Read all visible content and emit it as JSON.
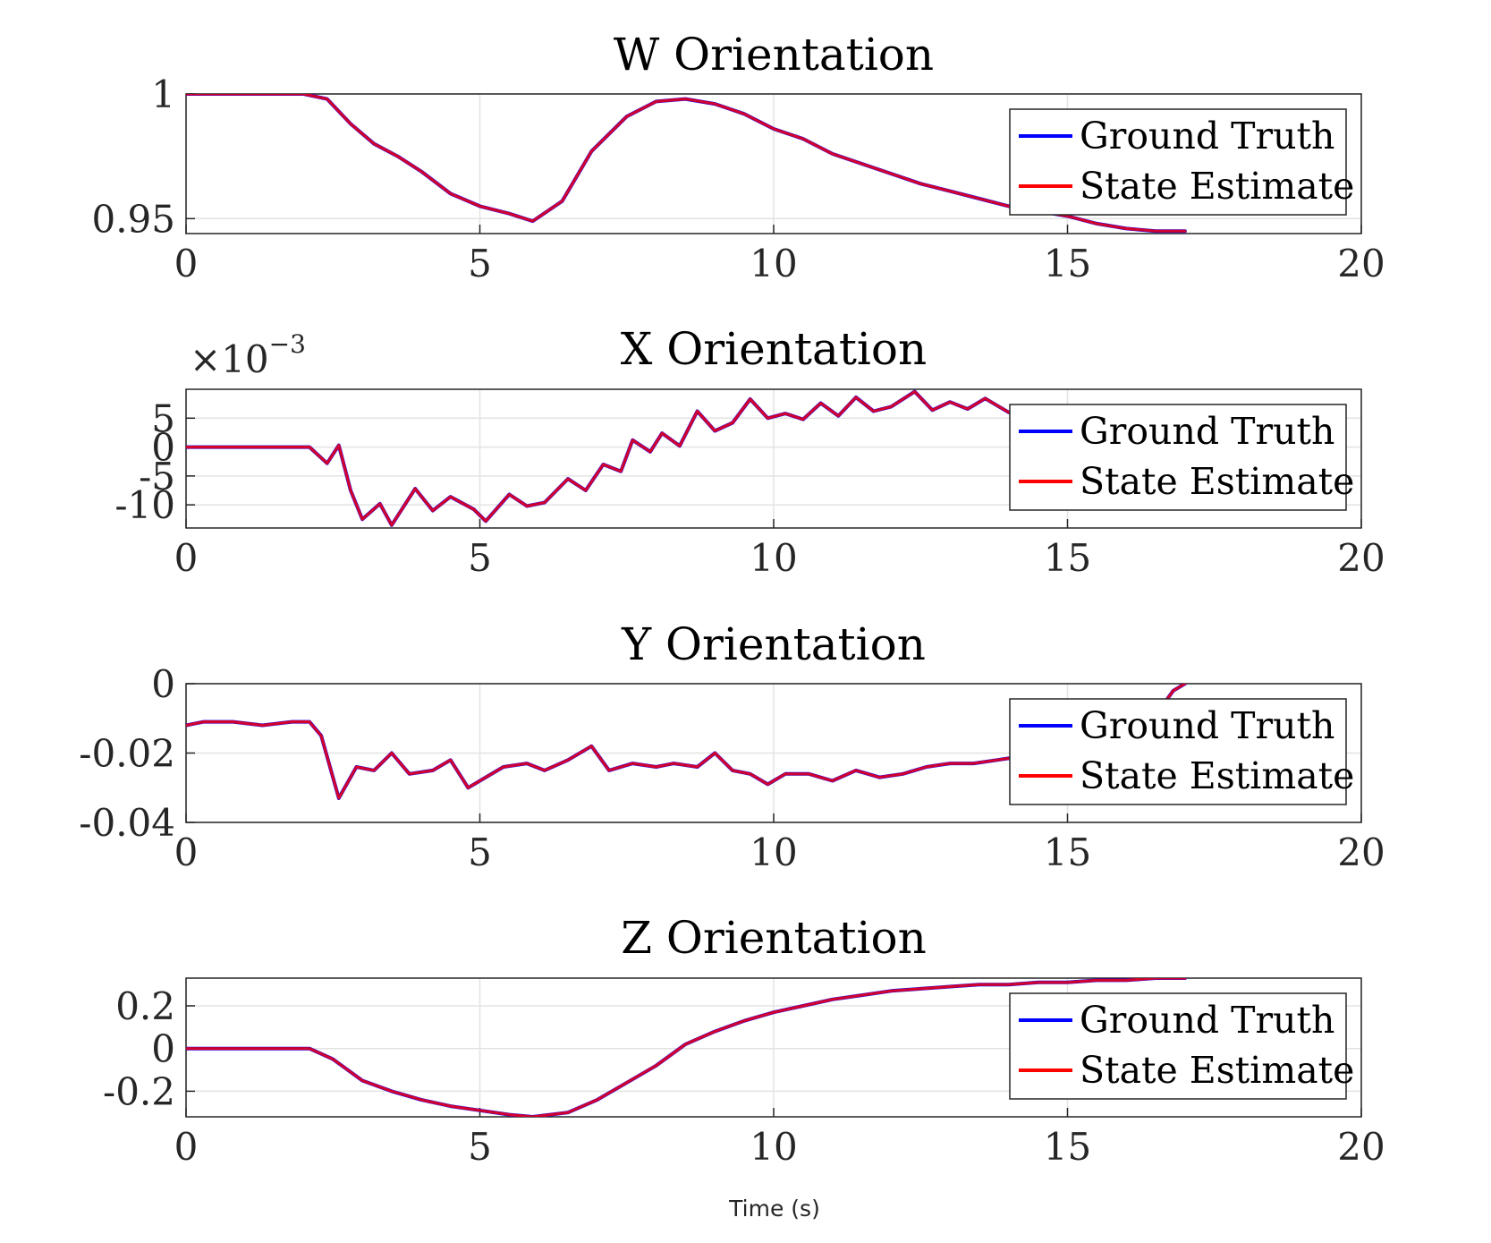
{
  "figure": {
    "xlabel": "Time (s)",
    "legend_labels": [
      "Ground Truth",
      "State Estimate"
    ],
    "colors": {
      "ground_truth": "#0000ff",
      "state_estimate": "#ff0000"
    }
  },
  "chart_data": [
    {
      "type": "line",
      "title": "W Orientation",
      "xlabel": "",
      "ylabel": "",
      "xlim": [
        0,
        20
      ],
      "ylim": [
        0.944,
        1.0
      ],
      "xticks": [
        "0",
        "5",
        "10",
        "15",
        "20"
      ],
      "yticks": [
        {
          "value": 1.0,
          "label": "1"
        },
        {
          "value": 0.95,
          "label": "0.95"
        }
      ],
      "exponent_label": "",
      "grid": true,
      "legend": "upper-right",
      "x": [
        0,
        0.5,
        1.0,
        1.5,
        2.0,
        2.4,
        2.8,
        3.2,
        3.6,
        4.0,
        4.5,
        5.0,
        5.5,
        5.9,
        6.4,
        6.9,
        7.5,
        8.0,
        8.5,
        9.0,
        9.5,
        10.0,
        10.5,
        11.0,
        11.5,
        12.0,
        12.5,
        13.0,
        13.5,
        14.0,
        14.5,
        15.0,
        15.5,
        16.0,
        16.5,
        17.0
      ],
      "series": [
        {
          "name": "Ground Truth",
          "values": [
            1.0,
            1.0,
            1.0,
            1.0,
            1.0,
            0.998,
            0.988,
            0.98,
            0.975,
            0.969,
            0.96,
            0.955,
            0.952,
            0.949,
            0.957,
            0.977,
            0.991,
            0.997,
            0.998,
            0.996,
            0.992,
            0.986,
            0.982,
            0.976,
            0.972,
            0.968,
            0.964,
            0.961,
            0.958,
            0.955,
            0.953,
            0.951,
            0.948,
            0.946,
            0.945,
            0.945
          ]
        },
        {
          "name": "State Estimate",
          "values": [
            1.0,
            1.0,
            1.0,
            1.0,
            1.0,
            0.998,
            0.988,
            0.98,
            0.975,
            0.969,
            0.96,
            0.955,
            0.952,
            0.949,
            0.957,
            0.977,
            0.991,
            0.997,
            0.998,
            0.996,
            0.992,
            0.986,
            0.982,
            0.976,
            0.972,
            0.968,
            0.964,
            0.961,
            0.958,
            0.955,
            0.953,
            0.951,
            0.948,
            0.946,
            0.945,
            0.945
          ]
        }
      ]
    },
    {
      "type": "line",
      "title": "X Orientation",
      "xlabel": "",
      "ylabel": "",
      "xlim": [
        0,
        20
      ],
      "ylim": [
        -14,
        10
      ],
      "xticks": [
        "0",
        "5",
        "10",
        "15",
        "20"
      ],
      "yticks": [
        {
          "value": 5,
          "label": "5"
        },
        {
          "value": 0,
          "label": "0"
        },
        {
          "value": -5,
          "label": "-5"
        },
        {
          "value": -10,
          "label": "-10"
        }
      ],
      "exponent_label": "×10",
      "exponent_power": "−3",
      "grid": true,
      "legend": "upper-right",
      "x": [
        0,
        1.0,
        2.1,
        2.4,
        2.6,
        2.8,
        3.0,
        3.3,
        3.5,
        3.9,
        4.2,
        4.5,
        4.9,
        5.1,
        5.5,
        5.8,
        6.1,
        6.5,
        6.8,
        7.1,
        7.4,
        7.6,
        7.9,
        8.1,
        8.4,
        8.7,
        9.0,
        9.3,
        9.6,
        9.9,
        10.2,
        10.5,
        10.8,
        11.1,
        11.4,
        11.7,
        12.0,
        12.4,
        12.7,
        13.0,
        13.3,
        13.6,
        14.0,
        14.5,
        15.0,
        15.5,
        16.0,
        16.5,
        17.0
      ],
      "series": [
        {
          "name": "Ground Truth",
          "values": [
            0,
            0,
            0,
            -2.8,
            0.3,
            -7.5,
            -12.5,
            -9.8,
            -13.5,
            -7.2,
            -11.0,
            -8.6,
            -10.8,
            -12.8,
            -8.2,
            -10.2,
            -9.6,
            -5.5,
            -7.5,
            -3.0,
            -4.2,
            1.2,
            -0.8,
            2.4,
            0.2,
            6.2,
            2.8,
            4.2,
            8.3,
            5.0,
            5.8,
            4.8,
            7.6,
            5.4,
            8.6,
            6.2,
            7.0,
            9.6,
            6.4,
            7.8,
            6.6,
            8.4,
            6.0,
            7.0,
            6.0,
            6.8,
            5.6,
            6.6,
            6.0
          ]
        },
        {
          "name": "State Estimate",
          "values": [
            0,
            0,
            0,
            -2.8,
            0.3,
            -7.5,
            -12.5,
            -9.8,
            -13.5,
            -7.2,
            -11.0,
            -8.6,
            -10.8,
            -12.8,
            -8.2,
            -10.2,
            -9.6,
            -5.5,
            -7.5,
            -3.0,
            -4.2,
            1.2,
            -0.8,
            2.4,
            0.2,
            6.2,
            2.8,
            4.2,
            8.3,
            5.0,
            5.8,
            4.8,
            7.6,
            5.4,
            8.6,
            6.2,
            7.0,
            9.6,
            6.4,
            7.8,
            6.6,
            8.4,
            6.0,
            7.0,
            6.0,
            6.8,
            5.6,
            6.6,
            6.0
          ]
        }
      ]
    },
    {
      "type": "line",
      "title": "Y Orientation",
      "xlabel": "",
      "ylabel": "",
      "xlim": [
        0,
        20
      ],
      "ylim": [
        -0.04,
        0.0
      ],
      "xticks": [
        "0",
        "5",
        "10",
        "15",
        "20"
      ],
      "yticks": [
        {
          "value": 0.0,
          "label": "0"
        },
        {
          "value": -0.02,
          "label": "-0.02"
        },
        {
          "value": -0.04,
          "label": "-0.04"
        }
      ],
      "exponent_label": "",
      "grid": true,
      "legend": "upper-right",
      "x": [
        0,
        0.3,
        0.8,
        1.3,
        1.8,
        2.1,
        2.3,
        2.6,
        2.9,
        3.2,
        3.5,
        3.8,
        4.2,
        4.5,
        4.8,
        5.1,
        5.4,
        5.8,
        6.1,
        6.5,
        6.9,
        7.2,
        7.6,
        8.0,
        8.3,
        8.7,
        9.0,
        9.3,
        9.6,
        9.9,
        10.2,
        10.6,
        11.0,
        11.4,
        11.8,
        12.2,
        12.6,
        13.0,
        13.4,
        13.8,
        14.2,
        14.6,
        15.0,
        15.4,
        15.8,
        16.2,
        16.5,
        16.8,
        17.0
      ],
      "series": [
        {
          "name": "Ground Truth",
          "values": [
            -0.012,
            -0.011,
            -0.011,
            -0.012,
            -0.011,
            -0.011,
            -0.015,
            -0.033,
            -0.024,
            -0.025,
            -0.02,
            -0.026,
            -0.025,
            -0.022,
            -0.03,
            -0.027,
            -0.024,
            -0.023,
            -0.025,
            -0.022,
            -0.018,
            -0.025,
            -0.023,
            -0.024,
            -0.023,
            -0.024,
            -0.02,
            -0.025,
            -0.026,
            -0.029,
            -0.026,
            -0.026,
            -0.028,
            -0.025,
            -0.027,
            -0.026,
            -0.024,
            -0.023,
            -0.023,
            -0.022,
            -0.021,
            -0.02,
            -0.019,
            -0.017,
            -0.015,
            -0.013,
            -0.009,
            -0.002,
            0.0
          ]
        },
        {
          "name": "State Estimate",
          "values": [
            -0.012,
            -0.011,
            -0.011,
            -0.012,
            -0.011,
            -0.011,
            -0.015,
            -0.033,
            -0.024,
            -0.025,
            -0.02,
            -0.026,
            -0.025,
            -0.022,
            -0.03,
            -0.027,
            -0.024,
            -0.023,
            -0.025,
            -0.022,
            -0.018,
            -0.025,
            -0.023,
            -0.024,
            -0.023,
            -0.024,
            -0.02,
            -0.025,
            -0.026,
            -0.029,
            -0.026,
            -0.026,
            -0.028,
            -0.025,
            -0.027,
            -0.026,
            -0.024,
            -0.023,
            -0.023,
            -0.022,
            -0.021,
            -0.02,
            -0.019,
            -0.017,
            -0.015,
            -0.013,
            -0.009,
            -0.002,
            0.0
          ]
        }
      ]
    },
    {
      "type": "line",
      "title": "Z Orientation",
      "xlabel": "Time (s)",
      "ylabel": "",
      "xlim": [
        0,
        20
      ],
      "ylim": [
        -0.32,
        0.33
      ],
      "xticks": [
        "0",
        "5",
        "10",
        "15",
        "20"
      ],
      "yticks": [
        {
          "value": 0.2,
          "label": "0.2"
        },
        {
          "value": 0.0,
          "label": "0"
        },
        {
          "value": -0.2,
          "label": "-0.2"
        }
      ],
      "exponent_label": "",
      "grid": true,
      "legend": "upper-right",
      "x": [
        0,
        1.0,
        2.1,
        2.5,
        3.0,
        3.5,
        4.0,
        4.5,
        5.0,
        5.5,
        5.9,
        6.5,
        7.0,
        7.5,
        8.0,
        8.5,
        9.0,
        9.5,
        10.0,
        10.5,
        11.0,
        11.5,
        12.0,
        12.5,
        13.0,
        13.5,
        14.0,
        14.5,
        15.0,
        15.5,
        16.0,
        16.5,
        17.0
      ],
      "series": [
        {
          "name": "Ground Truth",
          "values": [
            0.0,
            0.0,
            0.0,
            -0.05,
            -0.15,
            -0.2,
            -0.24,
            -0.27,
            -0.29,
            -0.31,
            -0.32,
            -0.3,
            -0.24,
            -0.16,
            -0.08,
            0.02,
            0.08,
            0.13,
            0.17,
            0.2,
            0.23,
            0.25,
            0.27,
            0.28,
            0.29,
            0.3,
            0.3,
            0.31,
            0.31,
            0.32,
            0.32,
            0.33,
            0.33
          ]
        },
        {
          "name": "State Estimate",
          "values": [
            0.0,
            0.0,
            0.0,
            -0.05,
            -0.15,
            -0.2,
            -0.24,
            -0.27,
            -0.29,
            -0.31,
            -0.32,
            -0.3,
            -0.24,
            -0.16,
            -0.08,
            0.02,
            0.08,
            0.13,
            0.17,
            0.2,
            0.23,
            0.25,
            0.27,
            0.28,
            0.29,
            0.3,
            0.3,
            0.31,
            0.31,
            0.32,
            0.32,
            0.33,
            0.33
          ]
        }
      ]
    }
  ]
}
